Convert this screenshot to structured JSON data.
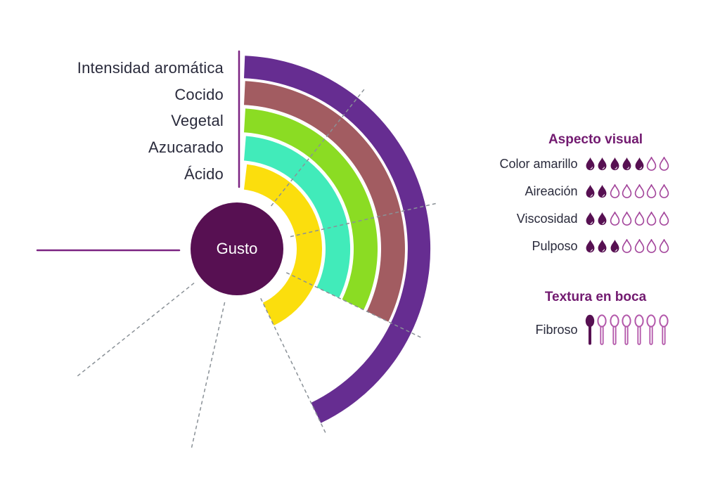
{
  "chart_data": {
    "type": "bar",
    "subtype": "radial-arc-rings",
    "center_label": "Gusto",
    "scale_max": 7,
    "angle_per_unit_deg": 38.57,
    "categories": [
      "Intensidad aromática",
      "Cocido",
      "Vegetal",
      "Azucarado",
      "Ácido"
    ],
    "values": [
      4,
      3,
      3,
      3,
      4
    ],
    "ring_order": "first category is outermost ring",
    "tick_values": [
      1,
      2,
      3,
      4,
      5,
      6
    ],
    "grid": "dashed radial tick lines",
    "legend_position": "right"
  },
  "legend": {
    "sections": [
      {
        "title": "Aspecto visual",
        "icon": "drop",
        "scale_max": 7,
        "rows": [
          {
            "label": "Color amarillo",
            "value": 5
          },
          {
            "label": "Aireación",
            "value": 2
          },
          {
            "label": "Viscosidad",
            "value": 2
          },
          {
            "label": "Pulposo",
            "value": 3
          }
        ]
      },
      {
        "title": "Textura en boca",
        "icon": "spoon",
        "scale_max": 7,
        "rows": [
          {
            "label": "Fibroso",
            "value": 1
          }
        ]
      }
    ]
  },
  "palette": {
    "ring_colors": [
      "#662D91",
      "#A25C61",
      "#8BDC23",
      "#41EBBA",
      "#FBDE0D"
    ],
    "center_circle": "#571052",
    "icon_filled": "#571052",
    "drop_outline": "#A3459B",
    "spoon_outline": "#B358AA",
    "heading_text": "#721A70",
    "label_text": "#2A2B3C",
    "axis_line": "#7B2382",
    "tick_line": "#8A9197",
    "background": "#FFFFFF"
  }
}
